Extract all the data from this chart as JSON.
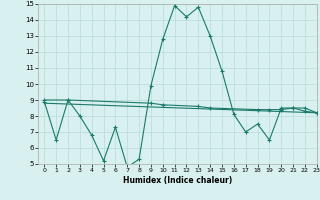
{
  "line1_x": [
    0,
    1,
    2,
    3,
    4,
    5,
    6,
    7,
    8,
    9,
    10,
    11,
    12,
    13,
    14,
    15,
    16,
    17,
    18,
    19,
    20,
    21,
    22,
    23
  ],
  "line1_y": [
    8.9,
    6.5,
    9.0,
    8.0,
    6.8,
    5.2,
    7.3,
    4.8,
    5.3,
    9.9,
    12.8,
    14.9,
    14.2,
    14.8,
    13.0,
    10.8,
    8.1,
    7.0,
    7.5,
    6.5,
    8.5,
    8.5,
    8.3,
    8.2
  ],
  "line2_x": [
    0,
    2,
    9,
    10,
    13,
    14,
    18,
    19,
    20,
    21,
    22,
    23
  ],
  "line2_y": [
    9.0,
    9.0,
    8.8,
    8.7,
    8.6,
    8.5,
    8.4,
    8.4,
    8.4,
    8.5,
    8.5,
    8.2
  ],
  "line3_x": [
    0,
    23
  ],
  "line3_y": [
    8.8,
    8.2
  ],
  "color": "#1a7a6a",
  "bg_color": "#d8f0ef",
  "grid_color": "#b8dbd8",
  "xlabel": "Humidex (Indice chaleur)",
  "ylim": [
    5,
    15
  ],
  "xlim": [
    -0.5,
    23
  ],
  "yticks": [
    5,
    6,
    7,
    8,
    9,
    10,
    11,
    12,
    13,
    14,
    15
  ],
  "xticks": [
    0,
    1,
    2,
    3,
    4,
    5,
    6,
    7,
    8,
    9,
    10,
    11,
    12,
    13,
    14,
    15,
    16,
    17,
    18,
    19,
    20,
    21,
    22,
    23
  ]
}
